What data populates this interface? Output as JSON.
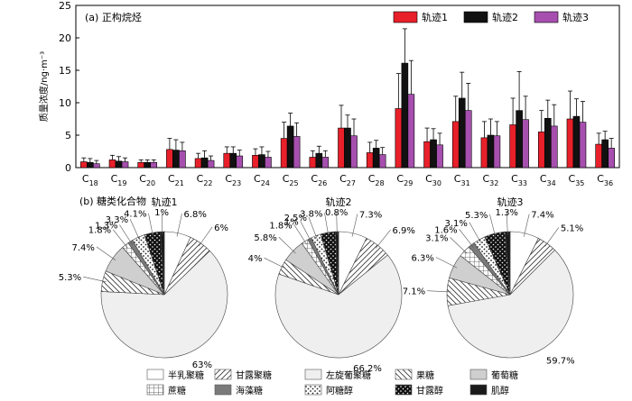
{
  "chart_data": [
    {
      "type": "bar",
      "title": "(a) 正构烷烃",
      "ylabel": "质量浓度/ng·m⁻³",
      "ylim": [
        0,
        25
      ],
      "yticks": [
        0,
        5,
        10,
        15,
        20,
        25
      ],
      "grid": false,
      "legend_position": "top-right",
      "categories": [
        {
          "base": "C",
          "sub": "18"
        },
        {
          "base": "C",
          "sub": "19"
        },
        {
          "base": "C",
          "sub": "20"
        },
        {
          "base": "C",
          "sub": "21"
        },
        {
          "base": "C",
          "sub": "22"
        },
        {
          "base": "C",
          "sub": "23"
        },
        {
          "base": "C",
          "sub": "24"
        },
        {
          "base": "C",
          "sub": "25"
        },
        {
          "base": "C",
          "sub": "26"
        },
        {
          "base": "C",
          "sub": "27"
        },
        {
          "base": "C",
          "sub": "28"
        },
        {
          "base": "C",
          "sub": "29"
        },
        {
          "base": "C",
          "sub": "30"
        },
        {
          "base": "C",
          "sub": "31"
        },
        {
          "base": "C",
          "sub": "32"
        },
        {
          "base": "C",
          "sub": "33"
        },
        {
          "base": "C",
          "sub": "34"
        },
        {
          "base": "C",
          "sub": "35"
        },
        {
          "base": "C",
          "sub": "36"
        }
      ],
      "series": [
        {
          "name": "轨迹1",
          "color": "#e8202a",
          "values": [
            0.9,
            1.2,
            0.8,
            2.8,
            1.4,
            2.2,
            1.9,
            4.5,
            1.6,
            6.1,
            2.3,
            9.1,
            4.0,
            7.1,
            4.6,
            6.6,
            5.5,
            7.5,
            3.6
          ],
          "errors": [
            0.6,
            0.7,
            0.4,
            1.7,
            0.8,
            1.0,
            1.0,
            2.5,
            1.0,
            3.5,
            1.6,
            5.4,
            2.1,
            3.9,
            2.5,
            4.1,
            3.3,
            4.3,
            1.7
          ]
        },
        {
          "name": "轨迹2",
          "color": "#111111",
          "values": [
            0.8,
            1.0,
            0.8,
            2.7,
            1.5,
            2.2,
            2.0,
            6.4,
            2.2,
            6.1,
            3.0,
            16.1,
            4.3,
            10.7,
            5.0,
            8.8,
            7.6,
            7.9,
            4.3
          ],
          "errors": [
            0.6,
            0.7,
            0.4,
            1.6,
            1.1,
            1.0,
            1.2,
            2.0,
            1.1,
            2.0,
            1.2,
            5.3,
            1.7,
            4.0,
            2.5,
            6.0,
            2.8,
            2.7,
            1.3
          ]
        },
        {
          "name": "轨迹3",
          "color": "#a64fae",
          "values": [
            0.6,
            0.9,
            0.8,
            2.6,
            1.1,
            1.8,
            1.6,
            4.8,
            1.6,
            4.9,
            2.0,
            11.3,
            3.5,
            8.8,
            4.9,
            7.4,
            6.4,
            7.0,
            3.0
          ],
          "errors": [
            0.5,
            0.6,
            0.4,
            1.3,
            0.7,
            0.9,
            0.9,
            2.1,
            1.0,
            2.6,
            1.1,
            5.2,
            1.8,
            4.2,
            2.2,
            3.6,
            3.3,
            3.2,
            1.5
          ]
        }
      ]
    },
    {
      "type": "pie",
      "title": "(b) 糖类化合物",
      "legend_position": "bottom",
      "categories": [
        "半乳聚糖",
        "甘露聚糖",
        "左旋葡聚糖",
        "果糖",
        "葡萄糖",
        "蔗糖",
        "海藻糖",
        "阿糖醇",
        "甘露醇",
        "肌醇"
      ],
      "patterns": [
        "none",
        "diag-right",
        "light",
        "diag-left",
        "grey",
        "grid",
        "dark-grey",
        "diamond-dots",
        "black-dots",
        "black"
      ],
      "pies": [
        {
          "name": "轨迹1",
          "values": [
            6.8,
            6,
            63,
            5.3,
            7.4,
            1.8,
            1.3,
            3.3,
            4.1,
            1
          ],
          "labels": [
            "6.8%",
            "6%",
            "63%",
            "5.3%",
            "7.4%",
            "1.8%",
            "1.3%",
            "3.3%",
            "4.1%",
            "1%"
          ]
        },
        {
          "name": "轨迹2",
          "values": [
            7.3,
            6.9,
            66.2,
            4,
            5.8,
            1.8,
            1,
            2.5,
            3.8,
            0.8
          ],
          "labels": [
            "7.3%",
            "6.9%",
            "66.2%",
            "4%",
            "5.8%",
            "1.8%",
            "1%",
            "2.5%",
            "3.8%",
            "0.8%"
          ]
        },
        {
          "name": "轨迹3",
          "values": [
            7.4,
            5.1,
            59.7,
            7.1,
            6.3,
            3.1,
            1.6,
            3.1,
            5.3,
            1.3
          ],
          "labels": [
            "7.4%",
            "5.1%",
            "59.7%",
            "7.1%",
            "6.3%",
            "3.1%",
            "1.6%",
            "3.1%",
            "5.3%",
            "1.3%"
          ]
        }
      ]
    }
  ]
}
